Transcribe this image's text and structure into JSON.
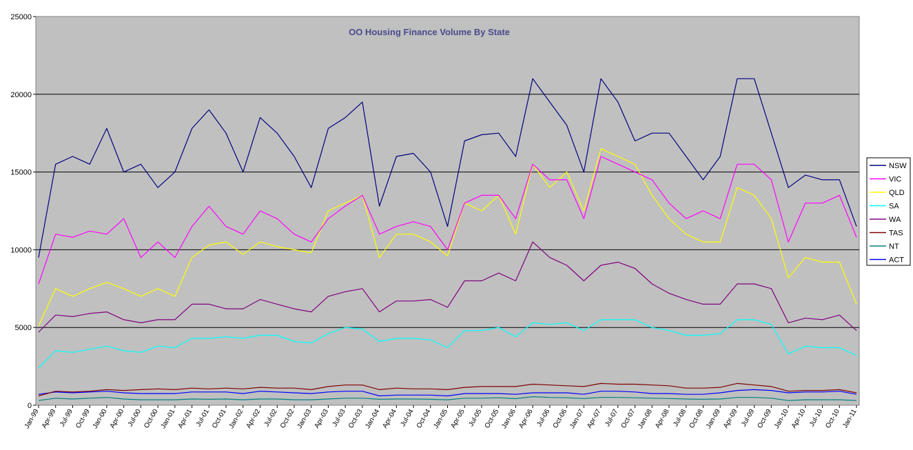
{
  "chart_data": {
    "type": "line",
    "title": "OO Housing Finance Volume By State",
    "xlabel": "",
    "ylabel": "",
    "ylim": [
      0,
      25000
    ],
    "y_ticks": [
      0,
      5000,
      10000,
      15000,
      20000,
      25000
    ],
    "x_ticks": [
      "Jan-99",
      "Apr-99",
      "Jul-99",
      "Oct-99",
      "Jan-00",
      "Apr-00",
      "Jul-00",
      "Oct-00",
      "Jan-01",
      "Apr-01",
      "Jul-01",
      "Oct-01",
      "Jan-02",
      "Apr-02",
      "Jul-02",
      "Oct-02",
      "Jan-03",
      "Apr-03",
      "Jul-03",
      "Oct-03",
      "Jan-04",
      "Apr-04",
      "Jul-04",
      "Oct-04",
      "Jan-05",
      "Apr-05",
      "Jul-05",
      "Oct-05",
      "Jan-06",
      "Apr-06",
      "Jul-06",
      "Oct-06",
      "Jan-07",
      "Apr-07",
      "Jul-07",
      "Oct-07",
      "Jan-08",
      "Apr-08",
      "Jul-08",
      "Oct-08",
      "Jan-09",
      "Apr-09",
      "Jul-09",
      "Oct-09",
      "Jan-10",
      "Apr-10",
      "Jul-10",
      "Oct-10",
      "Jan-11"
    ],
    "legend_position": "right",
    "grid": true,
    "series": [
      {
        "name": "NSW",
        "color": "#000080",
        "values": [
          9500,
          15500,
          16000,
          15500,
          17800,
          15000,
          15500,
          14000,
          15000,
          17800,
          19000,
          17500,
          15000,
          18500,
          17500,
          16000,
          14000,
          17800,
          18500,
          19500,
          12800,
          16000,
          16200,
          15000,
          11500,
          17000,
          17400,
          17500,
          16000,
          21000,
          19500,
          18000,
          15000,
          21000,
          19500,
          17000,
          17500,
          17500,
          16000,
          14500,
          16000,
          21000,
          21000,
          17500,
          14000,
          14800,
          14500,
          14500,
          11500
        ]
      },
      {
        "name": "VIC",
        "color": "#ff00ff",
        "values": [
          7800,
          11000,
          10800,
          11200,
          11000,
          12000,
          9500,
          10500,
          9500,
          11500,
          12800,
          11500,
          11000,
          12500,
          12000,
          11000,
          10500,
          12000,
          12800,
          13500,
          11000,
          11500,
          11800,
          11500,
          10000,
          13000,
          13500,
          13500,
          12000,
          15500,
          14500,
          14500,
          12000,
          16000,
          15500,
          15000,
          14500,
          13000,
          12000,
          12500,
          12000,
          15500,
          15500,
          14500,
          10500,
          13000,
          13000,
          13500,
          10800
        ]
      },
      {
        "name": "QLD",
        "color": "#ffff00",
        "values": [
          5100,
          7500,
          7000,
          7500,
          7900,
          7500,
          7000,
          7500,
          7000,
          9500,
          10300,
          10500,
          9700,
          10500,
          10200,
          10000,
          9800,
          12500,
          13000,
          13500,
          9500,
          11000,
          11000,
          10500,
          9600,
          13000,
          12500,
          13500,
          11000,
          15500,
          14000,
          15000,
          12500,
          16500,
          16000,
          15500,
          13500,
          12000,
          11000,
          10500,
          10500,
          14000,
          13500,
          12000,
          8200,
          9500,
          9200,
          9200,
          6500
        ]
      },
      {
        "name": "SA",
        "color": "#00ffff",
        "values": [
          2400,
          3500,
          3400,
          3600,
          3800,
          3500,
          3400,
          3800,
          3700,
          4300,
          4300,
          4400,
          4300,
          4500,
          4500,
          4100,
          4000,
          4600,
          5000,
          4900,
          4100,
          4300,
          4300,
          4200,
          3700,
          4800,
          4800,
          5000,
          4400,
          5300,
          5200,
          5300,
          4800,
          5500,
          5500,
          5500,
          5000,
          4800,
          4500,
          4500,
          4600,
          5500,
          5500,
          5200,
          3300,
          3800,
          3700,
          3700,
          3200
        ]
      },
      {
        "name": "WA",
        "color": "#800080",
        "values": [
          4700,
          5800,
          5700,
          5900,
          6000,
          5500,
          5300,
          5500,
          5500,
          6500,
          6500,
          6200,
          6200,
          6800,
          6500,
          6200,
          6000,
          7000,
          7300,
          7500,
          6000,
          6700,
          6700,
          6800,
          6300,
          8000,
          8000,
          8500,
          8000,
          10500,
          9500,
          9000,
          8000,
          9000,
          9200,
          8800,
          7800,
          7200,
          6800,
          6500,
          6500,
          7800,
          7800,
          7500,
          5300,
          5600,
          5500,
          5800,
          4800
        ]
      },
      {
        "name": "TAS",
        "color": "#800000",
        "values": [
          600,
          900,
          850,
          900,
          1000,
          950,
          1000,
          1050,
          1000,
          1100,
          1050,
          1100,
          1050,
          1150,
          1100,
          1100,
          1000,
          1200,
          1300,
          1300,
          1000,
          1100,
          1050,
          1050,
          1000,
          1150,
          1200,
          1200,
          1200,
          1350,
          1300,
          1250,
          1200,
          1400,
          1350,
          1350,
          1300,
          1250,
          1100,
          1100,
          1150,
          1400,
          1300,
          1200,
          900,
          950,
          950,
          1000,
          800
        ]
      },
      {
        "name": "NT",
        "color": "#008080",
        "values": [
          300,
          450,
          400,
          450,
          500,
          400,
          350,
          350,
          350,
          400,
          380,
          400,
          350,
          400,
          400,
          350,
          350,
          400,
          450,
          450,
          380,
          400,
          400,
          380,
          350,
          450,
          450,
          480,
          420,
          550,
          500,
          480,
          430,
          500,
          500,
          480,
          450,
          430,
          400,
          380,
          400,
          500,
          500,
          450,
          300,
          350,
          350,
          350,
          300
        ]
      },
      {
        "name": "ACT",
        "color": "#0000ff",
        "values": [
          700,
          850,
          800,
          850,
          900,
          800,
          750,
          750,
          750,
          850,
          850,
          850,
          750,
          900,
          850,
          800,
          750,
          850,
          900,
          900,
          600,
          650,
          650,
          650,
          600,
          750,
          750,
          750,
          700,
          800,
          800,
          800,
          700,
          900,
          900,
          850,
          750,
          750,
          700,
          700,
          800,
          950,
          1000,
          950,
          800,
          850,
          850,
          900,
          700
        ]
      }
    ]
  }
}
